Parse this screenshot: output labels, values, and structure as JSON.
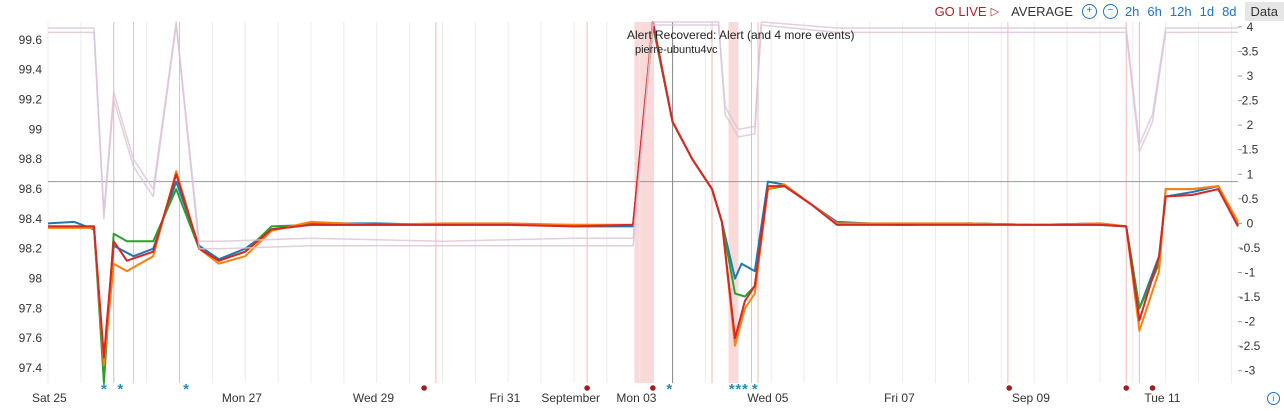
{
  "toolbar": {
    "go_live": "GO LIVE",
    "mode": "AVERAGE",
    "zoom_in": "+",
    "zoom_out": "−",
    "ranges": [
      "2h",
      "6h",
      "12h",
      "1d",
      "8d"
    ],
    "data_button": "Data"
  },
  "colors": {
    "blue": "#1f77b4",
    "green": "#2ca02c",
    "orange": "#ff7f0e",
    "red": "#d62728",
    "faint": "#d9c3d6",
    "alert_band": "#f8c9c9",
    "accent": "#1a73c9"
  },
  "chart_data": {
    "type": "line",
    "title": "",
    "xlabel": "",
    "ylabel": "",
    "x_tick_labels": [
      "Sat 25",
      "Mon 27",
      "Wed 29",
      "Fri 31",
      "September",
      "Mon 03",
      "Wed 05",
      "Fri 07",
      "Sep 09",
      "Tue 11"
    ],
    "x_range_days": [
      0,
      18.1
    ],
    "x_ticks_days": [
      0,
      2.95,
      4.95,
      6.95,
      7.95,
      8.95,
      10.95,
      12.95,
      14.95,
      16.95
    ],
    "left_axis": {
      "range": [
        97.3,
        99.72
      ],
      "ticks": [
        "97.4",
        "97.6",
        "97.8",
        "98",
        "98.2",
        "98.4",
        "98.6",
        "98.8",
        "99",
        "99.2",
        "99.4",
        "99.6"
      ]
    },
    "right_axis": {
      "range": [
        -3.25,
        4.1
      ],
      "ticks": [
        "-3",
        "-2.5",
        "-2",
        "-1.5",
        "-1",
        "-0.5",
        "0",
        "0.5",
        "1",
        "1.5",
        "2",
        "2.5",
        "3",
        "3.5",
        "4"
      ]
    },
    "reference_line": 98.65,
    "annotation": {
      "title": "Alert Recovered: Alert (and 4 more events)",
      "subtitle": "pierre-ubuntu4vc"
    },
    "alert_bands": [
      [
        8.92,
        9.22
      ],
      [
        10.35,
        10.5
      ]
    ],
    "event_lines": [
      1.0,
      1.3,
      2.0,
      5.9,
      8.2,
      10.1,
      10.7,
      10.8,
      14.6,
      16.4,
      16.6
    ],
    "markers": [
      {
        "x": 0.85,
        "type": "star"
      },
      {
        "x": 1.1,
        "type": "star"
      },
      {
        "x": 2.1,
        "type": "star"
      },
      {
        "x": 5.72,
        "type": "dot"
      },
      {
        "x": 8.2,
        "type": "dot"
      },
      {
        "x": 9.2,
        "type": "dot"
      },
      {
        "x": 9.45,
        "type": "star"
      },
      {
        "x": 10.4,
        "type": "star"
      },
      {
        "x": 10.5,
        "type": "star"
      },
      {
        "x": 10.6,
        "type": "star"
      },
      {
        "x": 10.75,
        "type": "star"
      },
      {
        "x": 14.62,
        "type": "dot"
      },
      {
        "x": 16.4,
        "type": "dot"
      },
      {
        "x": 16.8,
        "type": "dot"
      }
    ],
    "series": [
      {
        "color": "#1f77b4",
        "values": [
          [
            0,
            98.37
          ],
          [
            0.4,
            98.38
          ],
          [
            0.7,
            98.33
          ],
          [
            0.85,
            97.45
          ],
          [
            1.0,
            98.22
          ],
          [
            1.3,
            98.15
          ],
          [
            1.6,
            98.2
          ],
          [
            1.95,
            98.65
          ],
          [
            2.3,
            98.22
          ],
          [
            2.6,
            98.13
          ],
          [
            3.0,
            98.2
          ],
          [
            3.4,
            98.33
          ],
          [
            4.0,
            98.37
          ],
          [
            5.0,
            98.37
          ],
          [
            6.0,
            98.36
          ],
          [
            7.0,
            98.37
          ],
          [
            8.0,
            98.35
          ],
          [
            8.9,
            98.35
          ],
          [
            9.2,
            99.7
          ],
          [
            9.5,
            99.05
          ],
          [
            9.8,
            98.8
          ],
          [
            10.1,
            98.6
          ],
          [
            10.25,
            98.38
          ],
          [
            10.45,
            98.0
          ],
          [
            10.55,
            98.1
          ],
          [
            10.75,
            98.05
          ],
          [
            10.95,
            98.65
          ],
          [
            11.2,
            98.63
          ],
          [
            11.6,
            98.5
          ],
          [
            12.0,
            98.38
          ],
          [
            13.0,
            98.36
          ],
          [
            14.0,
            98.37
          ],
          [
            15.0,
            98.36
          ],
          [
            16.0,
            98.37
          ],
          [
            16.4,
            98.35
          ],
          [
            16.6,
            97.8
          ],
          [
            16.9,
            98.15
          ],
          [
            17.0,
            98.55
          ],
          [
            17.4,
            98.58
          ],
          [
            17.8,
            98.62
          ],
          [
            18.1,
            98.36
          ]
        ]
      },
      {
        "color": "#2ca02c",
        "values": [
          [
            0,
            98.35
          ],
          [
            0.4,
            98.35
          ],
          [
            0.7,
            98.35
          ],
          [
            0.85,
            97.3
          ],
          [
            1.0,
            98.3
          ],
          [
            1.2,
            98.25
          ],
          [
            1.6,
            98.25
          ],
          [
            1.95,
            98.6
          ],
          [
            2.3,
            98.2
          ],
          [
            2.6,
            98.12
          ],
          [
            3.0,
            98.18
          ],
          [
            3.4,
            98.35
          ],
          [
            4.0,
            98.36
          ],
          [
            5.0,
            98.36
          ],
          [
            6.0,
            98.36
          ],
          [
            7.0,
            98.36
          ],
          [
            8.0,
            98.36
          ],
          [
            8.9,
            98.36
          ],
          [
            9.2,
            99.7
          ],
          [
            9.5,
            99.05
          ],
          [
            9.8,
            98.8
          ],
          [
            10.1,
            98.6
          ],
          [
            10.25,
            98.38
          ],
          [
            10.45,
            97.9
          ],
          [
            10.6,
            97.88
          ],
          [
            10.75,
            97.95
          ],
          [
            10.95,
            98.6
          ],
          [
            11.2,
            98.62
          ],
          [
            11.6,
            98.5
          ],
          [
            12.0,
            98.37
          ],
          [
            13.0,
            98.36
          ],
          [
            14.0,
            98.37
          ],
          [
            15.0,
            98.36
          ],
          [
            16.0,
            98.36
          ],
          [
            16.4,
            98.35
          ],
          [
            16.6,
            97.8
          ],
          [
            16.9,
            98.1
          ],
          [
            17.0,
            98.6
          ],
          [
            17.4,
            98.6
          ],
          [
            17.8,
            98.62
          ],
          [
            18.1,
            98.36
          ]
        ]
      },
      {
        "color": "#ff7f0e",
        "values": [
          [
            0,
            98.34
          ],
          [
            0.4,
            98.34
          ],
          [
            0.7,
            98.34
          ],
          [
            0.85,
            97.42
          ],
          [
            1.0,
            98.1
          ],
          [
            1.2,
            98.05
          ],
          [
            1.6,
            98.15
          ],
          [
            1.95,
            98.72
          ],
          [
            2.3,
            98.2
          ],
          [
            2.6,
            98.1
          ],
          [
            3.0,
            98.15
          ],
          [
            3.4,
            98.32
          ],
          [
            4.0,
            98.38
          ],
          [
            5.0,
            98.36
          ],
          [
            6.0,
            98.37
          ],
          [
            7.0,
            98.37
          ],
          [
            8.0,
            98.36
          ],
          [
            8.9,
            98.36
          ],
          [
            9.2,
            99.72
          ],
          [
            9.5,
            99.05
          ],
          [
            9.8,
            98.8
          ],
          [
            10.1,
            98.6
          ],
          [
            10.25,
            98.38
          ],
          [
            10.45,
            97.55
          ],
          [
            10.6,
            97.8
          ],
          [
            10.75,
            97.9
          ],
          [
            10.95,
            98.6
          ],
          [
            11.2,
            98.63
          ],
          [
            11.6,
            98.5
          ],
          [
            12.0,
            98.37
          ],
          [
            13.0,
            98.37
          ],
          [
            14.0,
            98.37
          ],
          [
            15.0,
            98.36
          ],
          [
            16.0,
            98.37
          ],
          [
            16.4,
            98.35
          ],
          [
            16.6,
            97.65
          ],
          [
            16.9,
            98.05
          ],
          [
            17.0,
            98.6
          ],
          [
            17.4,
            98.6
          ],
          [
            17.8,
            98.62
          ],
          [
            18.1,
            98.38
          ]
        ]
      },
      {
        "color": "#d62728",
        "values": [
          [
            0,
            98.35
          ],
          [
            0.4,
            98.35
          ],
          [
            0.7,
            98.35
          ],
          [
            0.85,
            97.47
          ],
          [
            1.0,
            98.25
          ],
          [
            1.2,
            98.12
          ],
          [
            1.6,
            98.18
          ],
          [
            1.95,
            98.7
          ],
          [
            2.3,
            98.2
          ],
          [
            2.6,
            98.12
          ],
          [
            3.0,
            98.18
          ],
          [
            3.4,
            98.33
          ],
          [
            4.0,
            98.36
          ],
          [
            5.0,
            98.36
          ],
          [
            6.0,
            98.36
          ],
          [
            7.0,
            98.36
          ],
          [
            8.0,
            98.35
          ],
          [
            8.9,
            98.36
          ],
          [
            9.2,
            99.72
          ],
          [
            9.5,
            99.05
          ],
          [
            9.8,
            98.8
          ],
          [
            10.1,
            98.6
          ],
          [
            10.25,
            98.38
          ],
          [
            10.45,
            97.6
          ],
          [
            10.6,
            97.85
          ],
          [
            10.75,
            97.95
          ],
          [
            10.95,
            98.62
          ],
          [
            11.2,
            98.62
          ],
          [
            11.6,
            98.5
          ],
          [
            12.0,
            98.36
          ],
          [
            13.0,
            98.36
          ],
          [
            14.0,
            98.36
          ],
          [
            15.0,
            98.36
          ],
          [
            16.0,
            98.36
          ],
          [
            16.4,
            98.35
          ],
          [
            16.6,
            97.72
          ],
          [
            16.9,
            98.15
          ],
          [
            17.0,
            98.55
          ],
          [
            17.4,
            98.56
          ],
          [
            17.8,
            98.6
          ],
          [
            18.1,
            98.35
          ]
        ]
      },
      {
        "color": "#d9c3d6",
        "values": [
          [
            0,
            99.65
          ],
          [
            0.7,
            99.65
          ],
          [
            0.85,
            98.4
          ],
          [
            1.0,
            99.2
          ],
          [
            1.3,
            98.75
          ],
          [
            1.6,
            98.55
          ],
          [
            1.95,
            99.7
          ],
          [
            2.3,
            98.2
          ],
          [
            2.6,
            98.2
          ],
          [
            4.0,
            98.22
          ],
          [
            6.0,
            98.22
          ],
          [
            8.0,
            98.22
          ],
          [
            8.9,
            98.22
          ],
          [
            9.2,
            99.7
          ],
          [
            10.2,
            99.7
          ],
          [
            10.3,
            99.1
          ],
          [
            10.5,
            98.95
          ],
          [
            10.75,
            98.97
          ],
          [
            10.85,
            99.7
          ],
          [
            12.0,
            99.65
          ],
          [
            14.0,
            99.65
          ],
          [
            16.0,
            99.65
          ],
          [
            16.4,
            99.65
          ],
          [
            16.6,
            98.85
          ],
          [
            16.8,
            99.05
          ],
          [
            17.0,
            99.65
          ],
          [
            18.1,
            99.65
          ]
        ]
      },
      {
        "color": "#d9c3d6",
        "values": [
          [
            0,
            99.68
          ],
          [
            0.7,
            99.68
          ],
          [
            0.85,
            98.45
          ],
          [
            1.0,
            99.25
          ],
          [
            1.3,
            98.8
          ],
          [
            1.6,
            98.6
          ],
          [
            1.95,
            99.72
          ],
          [
            2.3,
            98.25
          ],
          [
            2.6,
            98.25
          ],
          [
            4.0,
            98.27
          ],
          [
            6.0,
            98.25
          ],
          [
            8.0,
            98.27
          ],
          [
            8.9,
            98.27
          ],
          [
            9.2,
            99.72
          ],
          [
            10.2,
            99.72
          ],
          [
            10.3,
            99.15
          ],
          [
            10.5,
            99.0
          ],
          [
            10.75,
            99.02
          ],
          [
            10.85,
            99.72
          ],
          [
            12.0,
            99.68
          ],
          [
            14.0,
            99.68
          ],
          [
            16.0,
            99.68
          ],
          [
            16.4,
            99.68
          ],
          [
            16.6,
            98.9
          ],
          [
            16.8,
            99.1
          ],
          [
            17.0,
            99.68
          ],
          [
            18.1,
            99.68
          ]
        ]
      }
    ]
  }
}
